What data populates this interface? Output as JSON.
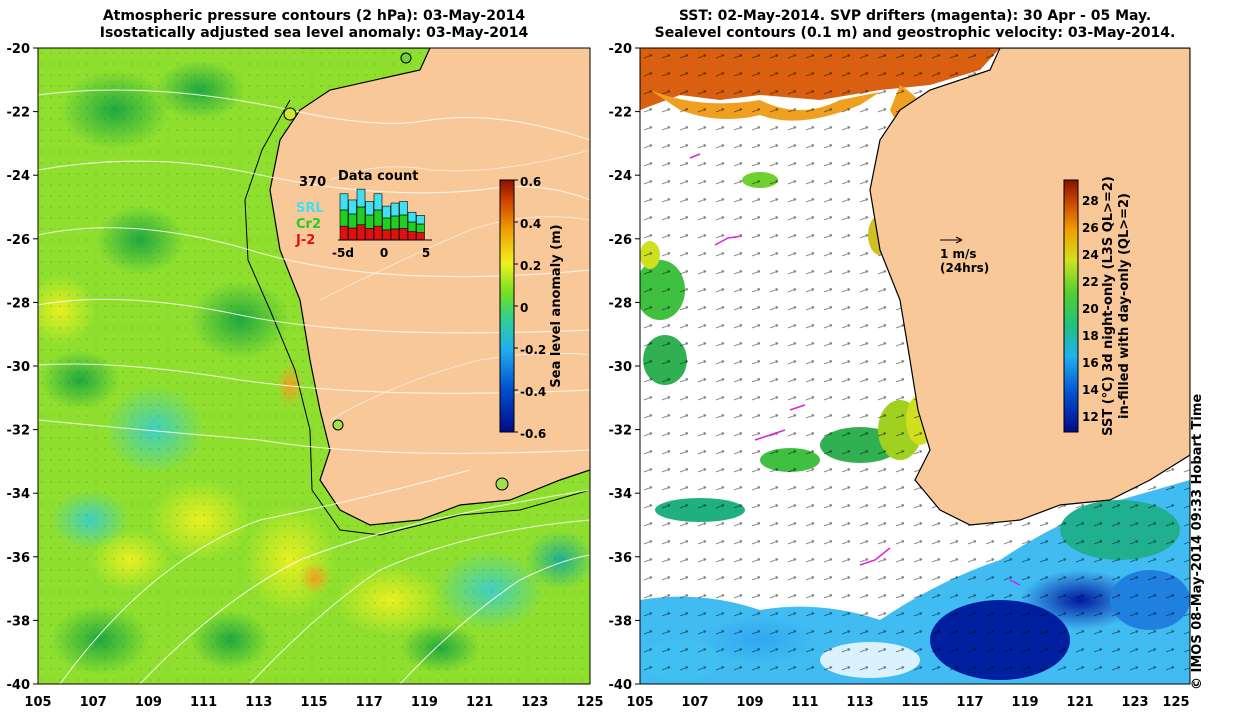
{
  "left_map": {
    "title_line1": "Atmospheric pressure contours (2 hPa): 03-May-2014",
    "title_line2": "Isostatically adjusted sea level anomaly: 03-May-2014",
    "y_ticks": [
      "-20",
      "-22",
      "-24",
      "-26",
      "-28",
      "-30",
      "-32",
      "-34",
      "-36",
      "-38",
      "-40"
    ],
    "x_ticks": [
      "105",
      "107",
      "109",
      "111",
      "113",
      "115",
      "117",
      "119",
      "121",
      "123",
      "125"
    ],
    "colorbar": {
      "label": "Sea level anomaly (m)",
      "ticks": [
        "0.6",
        "0.4",
        "0.2",
        "0",
        "-0.2",
        "-0.4",
        "-0.6"
      ],
      "range": [
        -0.6,
        0.6
      ]
    },
    "data_count": {
      "title": "Data count",
      "max_label": "370",
      "legend": [
        "SRL",
        "Cr2",
        "J-2"
      ],
      "legend_colors": [
        "#40e0f0",
        "#20d020",
        "#e01010"
      ],
      "x_labels": [
        "-5d",
        "0",
        "5"
      ],
      "bars_total": [
        300,
        260,
        330,
        250,
        300,
        220,
        240,
        250,
        180,
        160
      ]
    }
  },
  "right_map": {
    "title_line1": "SST: 02-May-2014. SVP drifters (magenta): 30 Apr - 05 May.",
    "title_line2": "Sealevel contours (0.1 m) and geostrophic velocity: 03-May-2014.",
    "y_ticks": [
      "-20",
      "-22",
      "-24",
      "-26",
      "-28",
      "-30",
      "-32",
      "-34",
      "-36",
      "-38",
      "-40"
    ],
    "x_ticks": [
      "105",
      "107",
      "109",
      "111",
      "113",
      "115",
      "117",
      "119",
      "121",
      "123",
      "125"
    ],
    "velocity_scale": {
      "label": "1 m/s",
      "sublabel": "(24hrs)"
    },
    "colorbar": {
      "label_line1": "SST (°C)  3d night-only (L3S QL>=2)",
      "label_line2": "in-filled with day-only (QL>=2)",
      "ticks": [
        "28",
        "26",
        "24",
        "22",
        "20",
        "18",
        "16",
        "14",
        "12"
      ],
      "range": [
        11,
        29.5
      ]
    }
  },
  "credit": "© IMOS 08-May-2014 09:33 Hobart Time"
}
